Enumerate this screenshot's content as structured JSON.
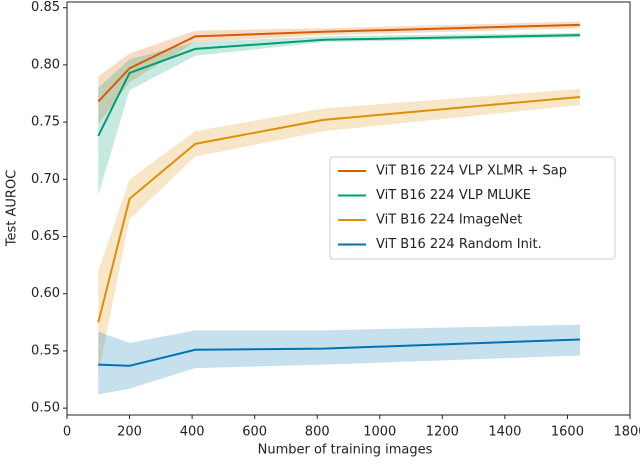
{
  "chart_data": {
    "type": "line",
    "x_label": "Number of training images",
    "y_label": "Test AUROC",
    "x": [
      100,
      200,
      410,
      820,
      1640
    ],
    "series": [
      {
        "name": "ViT B16 224 VLP XLMR + Sap",
        "color": "#d55e00",
        "values": [
          0.768,
          0.797,
          0.825,
          0.829,
          0.835
        ],
        "lower": [
          0.748,
          0.785,
          0.82,
          0.826,
          0.832
        ],
        "upper": [
          0.79,
          0.81,
          0.83,
          0.832,
          0.838
        ]
      },
      {
        "name": "ViT B16 224 VLP MLUKE",
        "color": "#029e73",
        "values": [
          0.738,
          0.793,
          0.814,
          0.822,
          0.826
        ],
        "lower": [
          0.686,
          0.778,
          0.808,
          0.82,
          0.824
        ],
        "upper": [
          0.78,
          0.805,
          0.82,
          0.825,
          0.828
        ]
      },
      {
        "name": "ViT B16 224 ImageNet",
        "color": "#de8f05",
        "values": [
          0.575,
          0.683,
          0.731,
          0.752,
          0.772
        ],
        "lower": [
          0.53,
          0.665,
          0.72,
          0.742,
          0.765
        ],
        "upper": [
          0.62,
          0.7,
          0.742,
          0.762,
          0.779
        ]
      },
      {
        "name": "ViT B16 224 Random Init.",
        "color": "#0173b2",
        "values": [
          0.538,
          0.537,
          0.551,
          0.552,
          0.56
        ],
        "lower": [
          0.512,
          0.517,
          0.535,
          0.538,
          0.546
        ],
        "upper": [
          0.567,
          0.557,
          0.568,
          0.568,
          0.573
        ]
      }
    ],
    "xlim": [
      0,
      1800
    ],
    "xticks": [
      0,
      200,
      400,
      600,
      800,
      1000,
      1200,
      1400,
      1600,
      1800
    ],
    "ylim": [
      0.494,
      0.855
    ],
    "yticks": [
      {
        "value": 0.5,
        "label": "0.50"
      },
      0.55,
      {
        "value": 0.6,
        "label": "0.60"
      },
      0.65,
      {
        "value": 0.7,
        "label": "0.70"
      },
      0.75,
      {
        "value": 0.8,
        "label": "0.80"
      },
      0.85
    ],
    "legend": "right",
    "grid": false
  }
}
